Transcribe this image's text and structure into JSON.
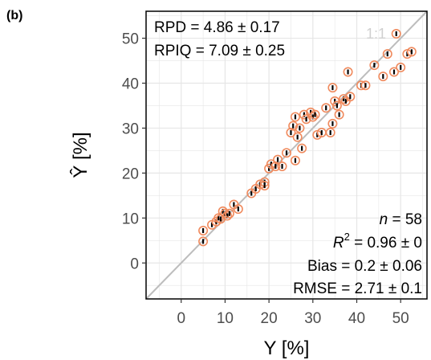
{
  "chart_data": {
    "type": "scatter",
    "panel_label": "(b)",
    "xlabel": "Y [%]",
    "ylabel": "Ŷ [%]",
    "xlim": [
      -8,
      56
    ],
    "ylim": [
      -8,
      56
    ],
    "x_ticks": [
      0,
      10,
      20,
      30,
      40,
      50
    ],
    "y_ticks": [
      0,
      10,
      20,
      30,
      40,
      50
    ],
    "grid": true,
    "reference_line": {
      "label": "1:1",
      "slope": 1,
      "intercept": 0,
      "color": "#bdbdbd"
    },
    "colors": {
      "marker": "#f08a5d",
      "mean_mark": "#000000",
      "border": "#000000",
      "grid": "#e6e6e6"
    },
    "stats_top": {
      "rpd": "RPD = 4.86 ± 0.17",
      "rpiq": "RPIQ = 7.09 ± 0.25"
    },
    "stats_bottom": {
      "n_label": "n",
      "n_value": " = 58",
      "r2_label": "R",
      "r2_sup": "2",
      "r2_value": " = 0.96 ± 0",
      "bias": "Bias = 0.2 ± 0.06",
      "rmse": "RMSE = 2.71 ± 0.1"
    },
    "points": [
      {
        "x": 5.0,
        "y": 4.8
      },
      {
        "x": 5.0,
        "y": 7.2
      },
      {
        "x": 7.0,
        "y": 8.5
      },
      {
        "x": 8.0,
        "y": 9.2
      },
      {
        "x": 8.5,
        "y": 10.0
      },
      {
        "x": 9.0,
        "y": 9.8
      },
      {
        "x": 9.5,
        "y": 11.5
      },
      {
        "x": 10.0,
        "y": 11.0
      },
      {
        "x": 10.5,
        "y": 10.5
      },
      {
        "x": 11.0,
        "y": 11.0
      },
      {
        "x": 12.0,
        "y": 13.0
      },
      {
        "x": 13.0,
        "y": 12.0
      },
      {
        "x": 16.0,
        "y": 15.5
      },
      {
        "x": 17.0,
        "y": 16.5
      },
      {
        "x": 18.0,
        "y": 17.5
      },
      {
        "x": 19.0,
        "y": 18.0
      },
      {
        "x": 19.0,
        "y": 17.2
      },
      {
        "x": 20.0,
        "y": 21.0
      },
      {
        "x": 20.5,
        "y": 22.0
      },
      {
        "x": 21.5,
        "y": 21.5
      },
      {
        "x": 22.0,
        "y": 23.0
      },
      {
        "x": 23.0,
        "y": 21.5
      },
      {
        "x": 24.0,
        "y": 24.5
      },
      {
        "x": 25.0,
        "y": 29.0
      },
      {
        "x": 25.5,
        "y": 30.5
      },
      {
        "x": 26.0,
        "y": 32.5
      },
      {
        "x": 26.5,
        "y": 28.0
      },
      {
        "x": 27.0,
        "y": 30.0
      },
      {
        "x": 26.0,
        "y": 22.8
      },
      {
        "x": 27.5,
        "y": 25.5
      },
      {
        "x": 28.0,
        "y": 33.0
      },
      {
        "x": 28.5,
        "y": 32.0
      },
      {
        "x": 29.5,
        "y": 33.5
      },
      {
        "x": 30.0,
        "y": 32.5
      },
      {
        "x": 30.5,
        "y": 33.0
      },
      {
        "x": 31.0,
        "y": 28.5
      },
      {
        "x": 32.0,
        "y": 29.0
      },
      {
        "x": 33.0,
        "y": 34.5
      },
      {
        "x": 34.0,
        "y": 29.0
      },
      {
        "x": 34.5,
        "y": 31.0
      },
      {
        "x": 35.0,
        "y": 36.0
      },
      {
        "x": 34.5,
        "y": 39.0
      },
      {
        "x": 35.5,
        "y": 35.0
      },
      {
        "x": 36.0,
        "y": 33.0
      },
      {
        "x": 37.0,
        "y": 36.5
      },
      {
        "x": 37.5,
        "y": 36.0
      },
      {
        "x": 38.0,
        "y": 42.5
      },
      {
        "x": 38.5,
        "y": 37.0
      },
      {
        "x": 41.0,
        "y": 39.5
      },
      {
        "x": 42.0,
        "y": 39.5
      },
      {
        "x": 44.0,
        "y": 44.0
      },
      {
        "x": 46.0,
        "y": 41.5
      },
      {
        "x": 47.0,
        "y": 46.5
      },
      {
        "x": 48.5,
        "y": 42.5
      },
      {
        "x": 49.0,
        "y": 51.0
      },
      {
        "x": 50.0,
        "y": 43.5
      },
      {
        "x": 51.5,
        "y": 46.5
      },
      {
        "x": 52.5,
        "y": 47.0
      }
    ]
  }
}
